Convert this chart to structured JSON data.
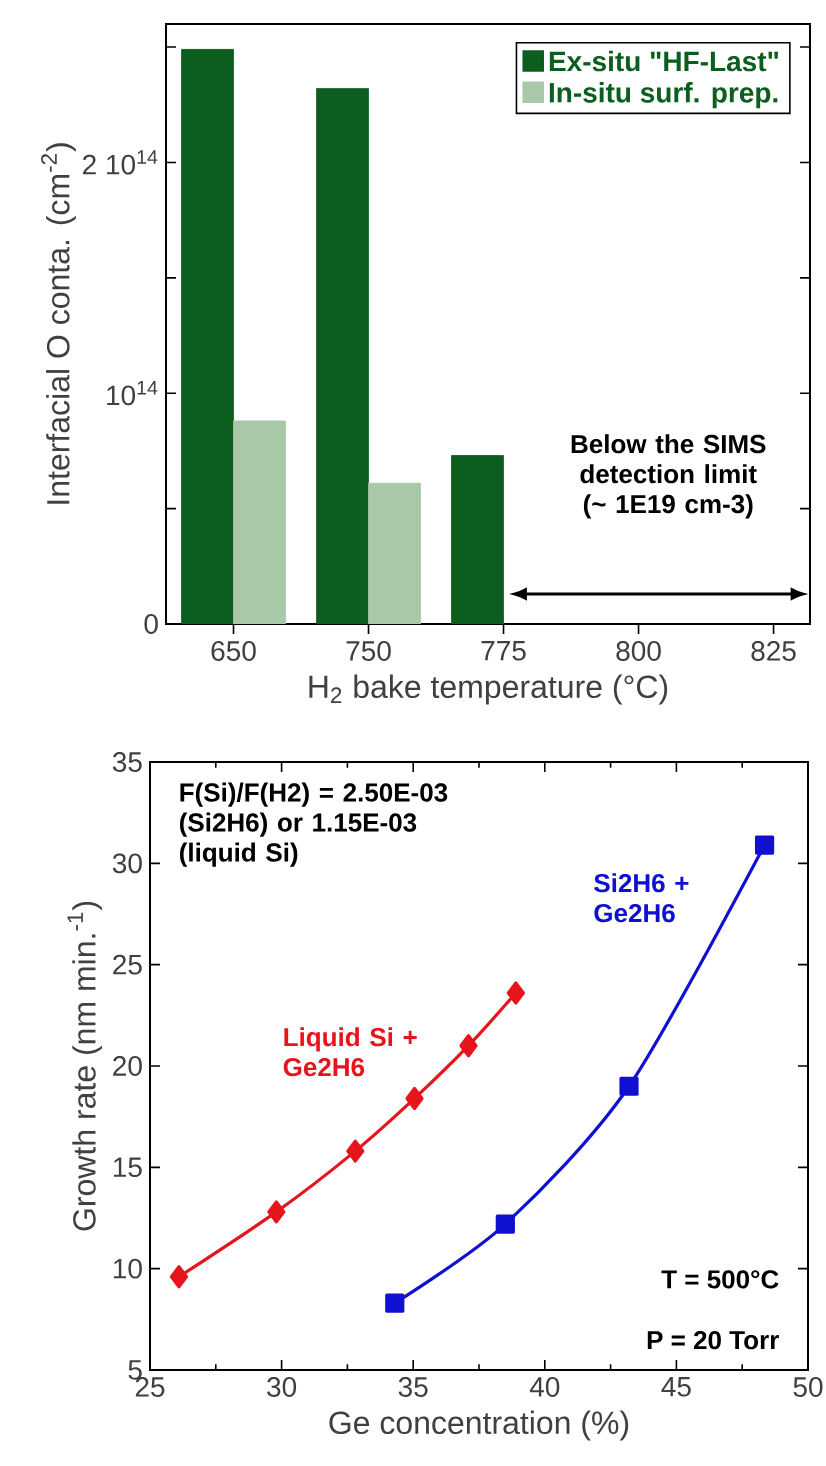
{
  "chart_data": [
    {
      "type": "bar",
      "xlabel": "H$_{2}$ bake temperature (°C)",
      "ylabel": "Interfacial O conta. (cm$^{-2}$)",
      "categories": [
        "650",
        "750",
        "775",
        "800",
        "825"
      ],
      "series": [
        {
          "name": "Ex-situ \"HF-Last\"",
          "color": "#0b5e1e",
          "values": [
            249000000000000.0,
            232000000000000.0,
            73000000000000.0,
            null,
            null
          ]
        },
        {
          "name": "In-situ surf. prep.",
          "color": "#a8c8a8",
          "values": [
            88000000000000.0,
            61000000000000.0,
            null,
            null,
            null
          ]
        }
      ],
      "ylim": [
        0,
        260000000000000.0
      ],
      "yticks": [
        0,
        {
          "value": 50000000000000.0,
          "label": null
        },
        {
          "value": 100000000000000.0,
          "label": "10$^{14}$"
        },
        {
          "value": 150000000000000.0,
          "label": null
        },
        {
          "value": 200000000000000.0,
          "label": "2 10$^{14}$"
        },
        {
          "value": 250000000000000.0,
          "label": null
        }
      ],
      "legend": "top right",
      "annotations": [
        "Below the SIMS detection limit (~ 1E19 cm-3)"
      ]
    },
    {
      "type": "line",
      "xlabel": "Ge concentration (%)",
      "ylabel": "Growth rate (nm min.$^{-1}$)",
      "series": [
        {
          "name": "Liquid Si + Ge2H6",
          "color": "#e8141c",
          "marker": "diamond",
          "x": [
            26.1,
            29.8,
            32.8,
            35.05,
            37.1,
            38.9
          ],
          "values": [
            9.6,
            12.8,
            15.8,
            18.4,
            21.0,
            23.6
          ]
        },
        {
          "name": "Si2H6 + Ge2H6",
          "color": "#1010d0",
          "marker": "square",
          "x": [
            34.3,
            38.5,
            43.2,
            48.35
          ],
          "values": [
            8.3,
            12.2,
            19.0,
            30.9
          ]
        }
      ],
      "xlim": [
        25,
        50
      ],
      "xticks": [
        25,
        30,
        35,
        40,
        45,
        50
      ],
      "ylim": [
        5,
        35
      ],
      "yticks": [
        5,
        10,
        15,
        20,
        25,
        30,
        35
      ],
      "line_style": "solid",
      "annotations": [
        "F(Si)/F(H2) = 2.50E-03 (Si2H6) or 1.15E-03 (liquid Si)",
        "T = 500°C",
        "P = 20 Torr"
      ]
    }
  ]
}
